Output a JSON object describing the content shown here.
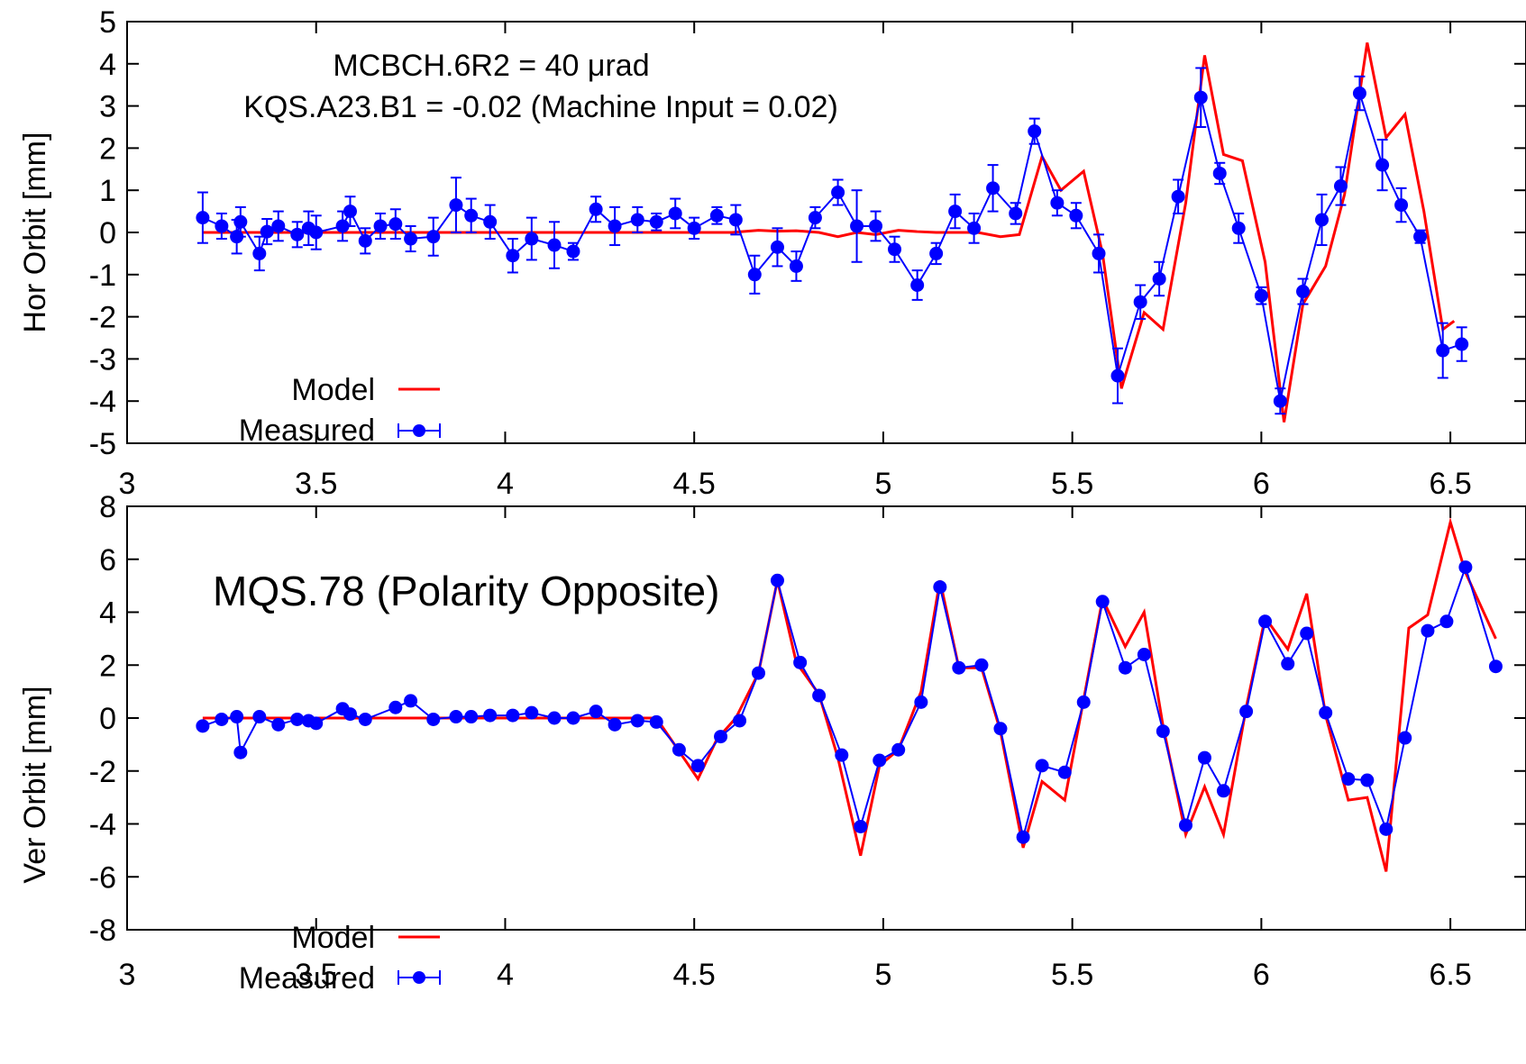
{
  "chart_data": [
    {
      "type": "line",
      "ylabel": "Hor Orbit [mm]",
      "xlabel": "",
      "xlim": [
        3,
        6.7
      ],
      "ylim": [
        -5,
        5
      ],
      "xticks": [
        "3",
        "3.5",
        "4",
        "4.5",
        "5",
        "5.5",
        "6",
        "6.5"
      ],
      "yticks": [
        "-5",
        "-4",
        "-3",
        "-2",
        "-1",
        "0",
        "1",
        "2",
        "3",
        "4",
        "5"
      ],
      "annotations": [
        "MCBCH.6R2 = 40 μrad",
        "KQS.A23.B1 = -0.02 (Machine Input = 0.02)"
      ],
      "legend_position": "bottom-left",
      "colors": {
        "model": "#ff0000",
        "measured": "#0000ff"
      },
      "series": [
        {
          "name": "Model",
          "style": "line",
          "x": [
            3.2,
            3.25,
            3.3,
            3.35,
            3.4,
            3.45,
            3.5,
            3.55,
            3.6,
            3.65,
            3.7,
            3.75,
            3.8,
            3.85,
            3.9,
            3.95,
            4.0,
            4.05,
            4.1,
            4.15,
            4.2,
            4.25,
            4.3,
            4.35,
            4.4,
            4.45,
            4.5,
            4.55,
            4.6,
            4.67,
            4.72,
            4.77,
            4.83,
            4.88,
            4.93,
            4.98,
            5.04,
            5.09,
            5.14,
            5.2,
            5.25,
            5.31,
            5.36,
            5.42,
            5.47,
            5.53,
            5.58,
            5.63,
            5.69,
            5.74,
            5.8,
            5.85,
            5.9,
            5.95,
            6.01,
            6.06,
            6.11,
            6.17,
            6.22,
            6.28,
            6.33,
            6.38,
            6.43,
            6.48,
            6.51
          ],
          "y": [
            0,
            0,
            0,
            0,
            0,
            0,
            0,
            0,
            0,
            0,
            0,
            0,
            0,
            0,
            0,
            0,
            0,
            0,
            0,
            0,
            0,
            0,
            0,
            0,
            0,
            0,
            0,
            0,
            0,
            0.05,
            0.03,
            0.04,
            0,
            -0.1,
            0,
            -0.05,
            0.05,
            0.02,
            0,
            0,
            0,
            -0.1,
            -0.05,
            1.8,
            1,
            1.45,
            -0.5,
            -3.7,
            -1.9,
            -2.3,
            0.7,
            4.2,
            1.85,
            1.7,
            -0.7,
            -4.5,
            -1.7,
            -0.8,
            0.9,
            4.5,
            2.25,
            2.8,
            0.5,
            -2.3,
            -2.1
          ]
        },
        {
          "name": "Measured",
          "style": "points-errorbars",
          "x": [
            3.2,
            3.25,
            3.29,
            3.3,
            3.35,
            3.37,
            3.4,
            3.45,
            3.48,
            3.5,
            3.57,
            3.59,
            3.63,
            3.67,
            3.71,
            3.75,
            3.81,
            3.87,
            3.91,
            3.96,
            4.02,
            4.07,
            4.13,
            4.18,
            4.24,
            4.29,
            4.35,
            4.4,
            4.45,
            4.5,
            4.56,
            4.61,
            4.66,
            4.72,
            4.77,
            4.82,
            4.88,
            4.93,
            4.98,
            5.03,
            5.09,
            5.14,
            5.19,
            5.24,
            5.29,
            5.35,
            5.4,
            5.46,
            5.51,
            5.57,
            5.62,
            5.68,
            5.73,
            5.78,
            5.84,
            5.89,
            5.94,
            6.0,
            6.05,
            6.11,
            6.16,
            6.21,
            6.26,
            6.32,
            6.37,
            6.42,
            6.48,
            6.53
          ],
          "y": [
            0.35,
            0.15,
            -0.1,
            0.25,
            -0.5,
            0.02,
            0.15,
            -0.05,
            0.1,
            0,
            0.15,
            0.5,
            -0.2,
            0.15,
            0.2,
            -0.15,
            -0.1,
            0.65,
            0.4,
            0.25,
            -0.55,
            -0.15,
            -0.3,
            -0.45,
            0.55,
            0.15,
            0.3,
            0.25,
            0.45,
            0.1,
            0.4,
            0.3,
            -1,
            -0.35,
            -0.8,
            0.35,
            0.95,
            0.15,
            0.15,
            -0.4,
            -1.25,
            -0.5,
            0.5,
            0.1,
            1.05,
            0.45,
            2.4,
            0.7,
            0.4,
            -0.5,
            -3.4,
            -1.65,
            -1.1,
            0.85,
            3.2,
            1.4,
            0.1,
            -1.5,
            -4,
            -1.4,
            0.3,
            1.1,
            3.3,
            1.6,
            0.65,
            -0.1,
            -2.8,
            -2.65
          ],
          "yerr": [
            0.6,
            0.3,
            0.4,
            0.35,
            0.4,
            0.3,
            0.35,
            0.3,
            0.4,
            0.4,
            0.35,
            0.35,
            0.3,
            0.3,
            0.35,
            0.3,
            0.45,
            0.65,
            0.4,
            0.4,
            0.4,
            0.5,
            0.55,
            0.2,
            0.3,
            0.45,
            0.3,
            0.2,
            0.35,
            0.25,
            0.2,
            0.35,
            0.45,
            0.45,
            0.35,
            0.25,
            0.3,
            0.85,
            0.35,
            0.3,
            0.35,
            0.25,
            0.4,
            0.35,
            0.55,
            0.25,
            0.3,
            0.3,
            0.3,
            0.45,
            0.65,
            0.4,
            0.4,
            0.4,
            0.7,
            0.25,
            0.35,
            0.2,
            0.3,
            0.3,
            0.6,
            0.45,
            0.4,
            0.6,
            0.4,
            0.15,
            0.65,
            0.4
          ]
        }
      ]
    },
    {
      "type": "line",
      "title": "MQS.78 (Polarity Opposite)",
      "ylabel": "Ver Orbit [mm]",
      "xlabel": "",
      "xlim": [
        3,
        6.7
      ],
      "ylim": [
        -8,
        8
      ],
      "xticks": [
        "3",
        "3.5",
        "4",
        "4.5",
        "5",
        "5.5",
        "6",
        "6.5"
      ],
      "yticks": [
        "-8",
        "-6",
        "-4",
        "-2",
        "0",
        "2",
        "4",
        "6",
        "8"
      ],
      "legend_position": "bottom-left",
      "colors": {
        "model": "#ff0000",
        "measured": "#0000ff"
      },
      "series": [
        {
          "name": "Model",
          "style": "line",
          "x": [
            3.2,
            3.3,
            3.4,
            3.5,
            3.6,
            3.7,
            3.8,
            3.9,
            4.0,
            4.1,
            4.2,
            4.3,
            4.4,
            4.51,
            4.56,
            4.61,
            4.67,
            4.72,
            4.77,
            4.83,
            4.88,
            4.94,
            4.99,
            5.04,
            5.1,
            5.15,
            5.2,
            5.26,
            5.31,
            5.37,
            5.42,
            5.48,
            5.53,
            5.58,
            5.64,
            5.69,
            5.74,
            5.8,
            5.85,
            5.9,
            5.96,
            6.01,
            6.07,
            6.12,
            6.17,
            6.23,
            6.28,
            6.33,
            6.39,
            6.44,
            6.5,
            6.54,
            6.62
          ],
          "y": [
            0,
            0,
            0,
            0,
            0,
            0,
            0,
            0,
            0,
            0,
            0,
            0,
            0,
            -2.3,
            -0.8,
            0,
            1.7,
            5.2,
            2.1,
            0.9,
            -1.5,
            -5.2,
            -1.8,
            -1.2,
            1.0,
            5.2,
            1.9,
            1.9,
            -0.5,
            -4.9,
            -2.4,
            -3.1,
            0.7,
            4.5,
            2.7,
            4.0,
            -0.3,
            -4.4,
            -2.6,
            -4.4,
            0.4,
            3.8,
            2.6,
            4.7,
            0.1,
            -3.1,
            -3.0,
            -5.8,
            3.4,
            3.9,
            7.4,
            5.5,
            3.0
          ]
        },
        {
          "name": "Measured",
          "style": "points-errorbars",
          "x": [
            3.2,
            3.25,
            3.29,
            3.3,
            3.35,
            3.4,
            3.45,
            3.48,
            3.5,
            3.57,
            3.59,
            3.63,
            3.71,
            3.75,
            3.81,
            3.87,
            3.91,
            3.96,
            4.02,
            4.07,
            4.13,
            4.18,
            4.24,
            4.29,
            4.35,
            4.4,
            4.46,
            4.51,
            4.57,
            4.62,
            4.67,
            4.72,
            4.78,
            4.83,
            4.89,
            4.94,
            4.99,
            5.04,
            5.1,
            5.15,
            5.2,
            5.26,
            5.31,
            5.37,
            5.42,
            5.48,
            5.53,
            5.58,
            5.64,
            5.69,
            5.74,
            5.8,
            5.85,
            5.9,
            5.96,
            6.01,
            6.07,
            6.12,
            6.17,
            6.23,
            6.28,
            6.33,
            6.38,
            6.44,
            6.49,
            6.54,
            6.62
          ],
          "y": [
            -0.3,
            -0.05,
            0.05,
            -1.3,
            0.05,
            -0.25,
            -0.05,
            -0.1,
            -0.2,
            0.35,
            0.15,
            -0.05,
            0.4,
            0.65,
            -0.05,
            0.05,
            0.05,
            0.1,
            0.1,
            0.2,
            0,
            0,
            0.25,
            -0.25,
            -0.1,
            -0.15,
            -1.2,
            -1.8,
            -0.7,
            -0.1,
            1.7,
            5.2,
            2.1,
            0.85,
            -1.4,
            -4.1,
            -1.6,
            -1.2,
            0.6,
            4.95,
            1.9,
            2.0,
            -0.4,
            -4.5,
            -1.8,
            -2.05,
            0.6,
            4.4,
            1.9,
            2.4,
            -0.5,
            -4.05,
            -1.5,
            -2.75,
            0.25,
            3.65,
            2.05,
            3.2,
            0.2,
            -2.3,
            -2.35,
            -4.2,
            -0.75,
            3.3,
            3.65,
            5.7,
            1.95
          ]
        }
      ]
    }
  ]
}
